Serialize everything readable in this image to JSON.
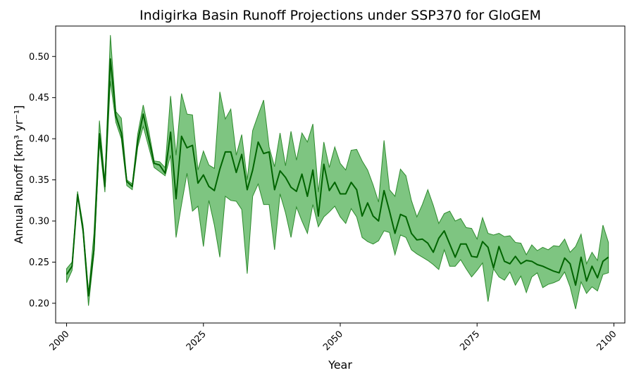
{
  "chart_data": {
    "type": "area",
    "title": "Indigirka Basin Runoff Projections under SSP370 for GloGEM",
    "xlabel": "Year",
    "ylabel": "Annual Runoff [km³ yr⁻¹]",
    "xlim": [
      1998,
      2102
    ],
    "ylim": [
      0.176,
      0.537
    ],
    "xticks": [
      2000,
      2025,
      2050,
      2075,
      2100
    ],
    "yticks": [
      0.2,
      0.25,
      0.3,
      0.35,
      0.4,
      0.45,
      0.5
    ],
    "yticks_labels": [
      "0.20",
      "0.25",
      "0.30",
      "0.35",
      "0.40",
      "0.45",
      "0.50"
    ],
    "grid": false,
    "legend": "none",
    "colors": {
      "line": "#006400",
      "band": "#4CAF50"
    },
    "series": [
      {
        "x": [
          2000,
          2001,
          2002,
          2003,
          2004,
          2005,
          2006,
          2007,
          2008,
          2009,
          2010,
          2011,
          2012,
          2013,
          2014,
          2015,
          2016,
          2017,
          2018,
          2019,
          2020,
          2021,
          2022,
          2023,
          2024,
          2025,
          2026,
          2027,
          2028,
          2029,
          2030,
          2031,
          2032,
          2033,
          2034,
          2035,
          2036,
          2037,
          2038,
          2039,
          2040,
          2041,
          2042,
          2043,
          2044,
          2045,
          2046,
          2047,
          2048,
          2049,
          2050,
          2051,
          2052,
          2053,
          2054,
          2055,
          2056,
          2057,
          2058,
          2059,
          2060,
          2061,
          2062,
          2063,
          2064,
          2065,
          2066,
          2067,
          2068,
          2069,
          2070,
          2071,
          2072,
          2073,
          2074,
          2075,
          2076,
          2077,
          2078,
          2079,
          2080,
          2081,
          2082,
          2083,
          2084,
          2085,
          2086,
          2087,
          2088,
          2089,
          2090,
          2091,
          2092,
          2093,
          2094,
          2095,
          2096,
          2097,
          2098,
          2099
        ],
        "mean": [
          0.235,
          0.245,
          0.332,
          0.29,
          0.209,
          0.265,
          0.406,
          0.342,
          0.497,
          0.428,
          0.407,
          0.348,
          0.342,
          0.397,
          0.43,
          0.4,
          0.37,
          0.368,
          0.358,
          0.408,
          0.327,
          0.403,
          0.389,
          0.392,
          0.346,
          0.356,
          0.342,
          0.337,
          0.363,
          0.384,
          0.384,
          0.359,
          0.381,
          0.338,
          0.362,
          0.396,
          0.382,
          0.384,
          0.338,
          0.361,
          0.353,
          0.341,
          0.336,
          0.357,
          0.33,
          0.362,
          0.306,
          0.369,
          0.337,
          0.347,
          0.333,
          0.333,
          0.347,
          0.338,
          0.306,
          0.322,
          0.306,
          0.3,
          0.337,
          0.312,
          0.285,
          0.308,
          0.305,
          0.285,
          0.277,
          0.278,
          0.273,
          0.262,
          0.279,
          0.288,
          0.272,
          0.256,
          0.272,
          0.272,
          0.257,
          0.256,
          0.275,
          0.268,
          0.243,
          0.269,
          0.251,
          0.248,
          0.257,
          0.248,
          0.252,
          0.251,
          0.247,
          0.245,
          0.242,
          0.239,
          0.237,
          0.255,
          0.248,
          0.222,
          0.256,
          0.227,
          0.245,
          0.231,
          0.251,
          0.256
        ],
        "lower": [
          0.225,
          0.24,
          0.33,
          0.285,
          0.197,
          0.26,
          0.395,
          0.335,
          0.47,
          0.42,
          0.4,
          0.343,
          0.338,
          0.39,
          0.415,
          0.39,
          0.365,
          0.36,
          0.355,
          0.38,
          0.28,
          0.32,
          0.358,
          0.312,
          0.318,
          0.269,
          0.325,
          0.295,
          0.256,
          0.33,
          0.325,
          0.324,
          0.314,
          0.236,
          0.33,
          0.345,
          0.32,
          0.32,
          0.265,
          0.333,
          0.31,
          0.28,
          0.317,
          0.3,
          0.285,
          0.32,
          0.293,
          0.305,
          0.311,
          0.318,
          0.305,
          0.297,
          0.315,
          0.305,
          0.28,
          0.275,
          0.272,
          0.276,
          0.288,
          0.286,
          0.259,
          0.283,
          0.28,
          0.265,
          0.26,
          0.256,
          0.252,
          0.247,
          0.241,
          0.265,
          0.245,
          0.245,
          0.253,
          0.242,
          0.232,
          0.24,
          0.249,
          0.202,
          0.242,
          0.232,
          0.228,
          0.238,
          0.222,
          0.233,
          0.213,
          0.232,
          0.237,
          0.219,
          0.223,
          0.225,
          0.228,
          0.238,
          0.22,
          0.193,
          0.226,
          0.212,
          0.22,
          0.215,
          0.235,
          0.237
        ],
        "upper": [
          0.242,
          0.25,
          0.336,
          0.295,
          0.212,
          0.285,
          0.422,
          0.348,
          0.526,
          0.433,
          0.425,
          0.35,
          0.345,
          0.406,
          0.441,
          0.41,
          0.373,
          0.372,
          0.365,
          0.452,
          0.38,
          0.455,
          0.43,
          0.429,
          0.362,
          0.385,
          0.368,
          0.364,
          0.457,
          0.424,
          0.436,
          0.38,
          0.405,
          0.35,
          0.41,
          0.429,
          0.447,
          0.39,
          0.366,
          0.407,
          0.367,
          0.409,
          0.374,
          0.407,
          0.396,
          0.418,
          0.335,
          0.396,
          0.365,
          0.39,
          0.37,
          0.362,
          0.386,
          0.387,
          0.373,
          0.362,
          0.344,
          0.323,
          0.398,
          0.338,
          0.33,
          0.363,
          0.355,
          0.325,
          0.305,
          0.32,
          0.338,
          0.319,
          0.297,
          0.309,
          0.312,
          0.3,
          0.303,
          0.292,
          0.291,
          0.278,
          0.304,
          0.285,
          0.283,
          0.285,
          0.281,
          0.282,
          0.274,
          0.273,
          0.259,
          0.271,
          0.264,
          0.268,
          0.265,
          0.27,
          0.269,
          0.278,
          0.262,
          0.269,
          0.284,
          0.248,
          0.262,
          0.252,
          0.295,
          0.274
        ]
      }
    ]
  }
}
